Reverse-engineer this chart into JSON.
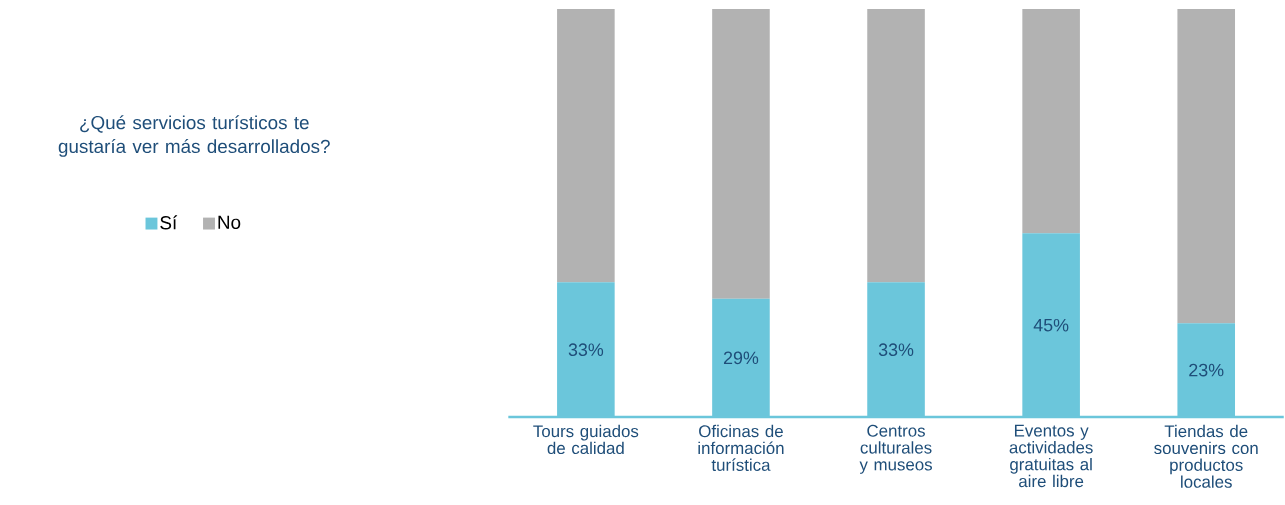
{
  "chart_data": {
    "type": "bar",
    "title": "¿Qué servicios turísticos te gustaría ver más desarrollados?",
    "stacked": true,
    "legend": "left",
    "categories": [
      "Tours guiados de calidad",
      "Oficinas de información turística",
      "Centros culturales y museos",
      "Eventos y actividades gratuitas al aire libre",
      "Tiendas de souvenirs con productos locales"
    ],
    "series": [
      {
        "name": "Sí",
        "color": "#6bc6db",
        "values": [
          33,
          29,
          33,
          45,
          23
        ],
        "value_labels": [
          "33%",
          "29%",
          "33%",
          "45%",
          "23%"
        ]
      },
      {
        "name": "No",
        "color": "#b2b2b2",
        "values": [
          67,
          71,
          67,
          55,
          77
        ]
      }
    ]
  }
}
